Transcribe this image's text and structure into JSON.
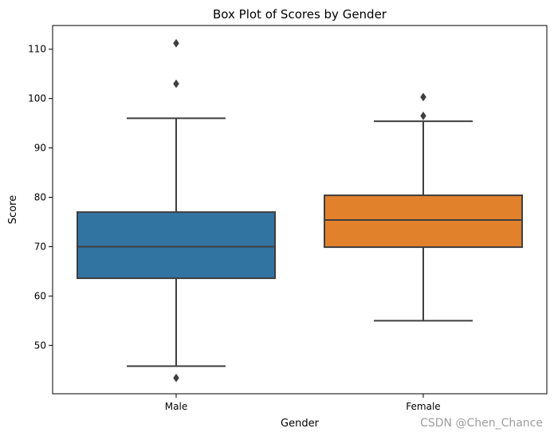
{
  "chart_data": {
    "type": "box",
    "title": "Box Plot of Scores by Gender",
    "xlabel": "Gender",
    "ylabel": "Score",
    "ylim": [
      40.2,
      114.8
    ],
    "yticks": [
      50,
      60,
      70,
      80,
      90,
      100,
      110
    ],
    "categories": [
      "Male",
      "Female"
    ],
    "series": [
      {
        "name": "Male",
        "color": "#3274a1",
        "whisker_low": 45.8,
        "q1": 63.6,
        "median": 70.0,
        "q3": 77.0,
        "whisker_high": 96.0,
        "outliers": [
          43.4,
          103.0,
          111.2
        ]
      },
      {
        "name": "Female",
        "color": "#e1812c",
        "whisker_low": 55.0,
        "q1": 69.9,
        "median": 75.4,
        "q3": 80.4,
        "whisker_high": 95.4,
        "outliers": [
          96.5,
          100.3
        ]
      }
    ],
    "line_color": "#3f3f3f"
  },
  "watermark": "CSDN @Chen_Chance"
}
